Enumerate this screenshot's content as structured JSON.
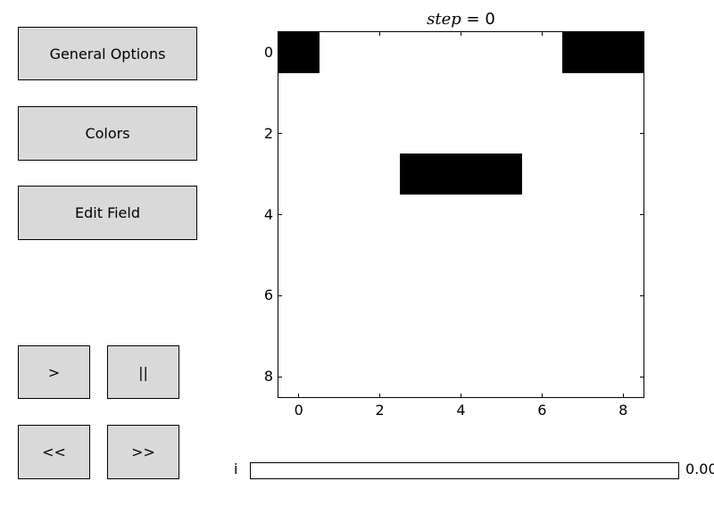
{
  "buttons": {
    "general_options": "General Options",
    "colors": "Colors",
    "edit_field": "Edit Field",
    "play": ">",
    "pause": "||",
    "rewind": "<<",
    "forward": ">>"
  },
  "plot": {
    "title_var": "step",
    "title_eq": " = 0",
    "grid_rows": 9,
    "grid_cols": 9,
    "cell_color": "#000000",
    "background": "#ffffff",
    "filled_cells": [
      [
        0,
        0
      ],
      [
        0,
        7
      ],
      [
        0,
        8
      ],
      [
        3,
        3
      ],
      [
        3,
        4
      ],
      [
        3,
        5
      ]
    ],
    "x_ticks": [
      "0",
      "2",
      "4",
      "6",
      "8"
    ],
    "y_ticks": [
      "0",
      "2",
      "4",
      "6",
      "8"
    ]
  },
  "slider": {
    "label": "i",
    "value_text": "0.00",
    "fraction": 0.0
  }
}
